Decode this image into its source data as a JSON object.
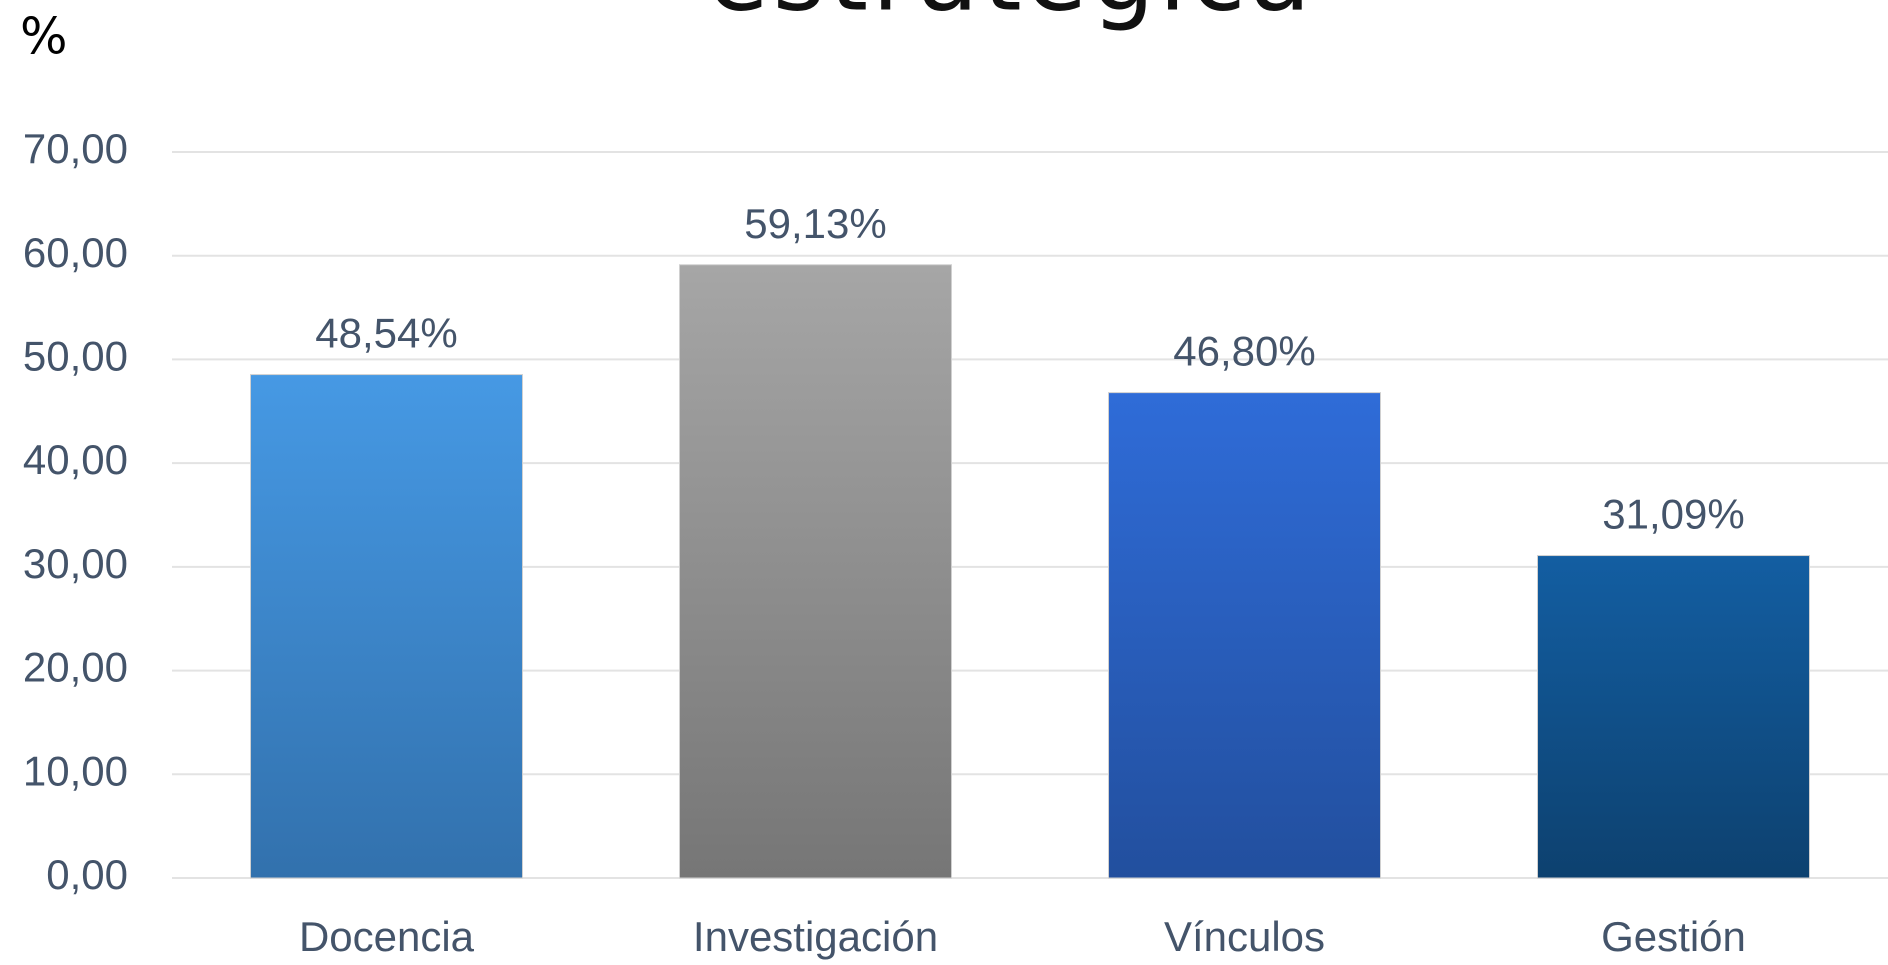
{
  "chart_data": {
    "type": "bar",
    "title": "estratégica",
    "y_label": "%",
    "categories": [
      "Docencia",
      "Investigación",
      "Vínculos",
      "Gestión"
    ],
    "values": [
      48.54,
      59.13,
      46.8,
      31.09
    ],
    "value_labels": [
      "48,54%",
      "59,13%",
      "46,80%",
      "31,09%"
    ],
    "colors": [
      [
        "#4699e4",
        "#3271ad"
      ],
      [
        "#a6a6a6",
        "#767676"
      ],
      [
        "#2f6cd8",
        "#224f9e"
      ],
      [
        "#135ea2",
        "#0d416f"
      ]
    ],
    "ylim": [
      0,
      70
    ],
    "yticks": [
      {
        "value": 0,
        "label": "0,00"
      },
      {
        "value": 10,
        "label": "10,00"
      },
      {
        "value": 20,
        "label": "20,00"
      },
      {
        "value": 30,
        "label": "30,00"
      },
      {
        "value": 40,
        "label": "40,00"
      },
      {
        "value": 50,
        "label": "50,00"
      },
      {
        "value": 60,
        "label": "60,00"
      },
      {
        "value": 70,
        "label": "70,00"
      }
    ],
    "grid": true
  }
}
